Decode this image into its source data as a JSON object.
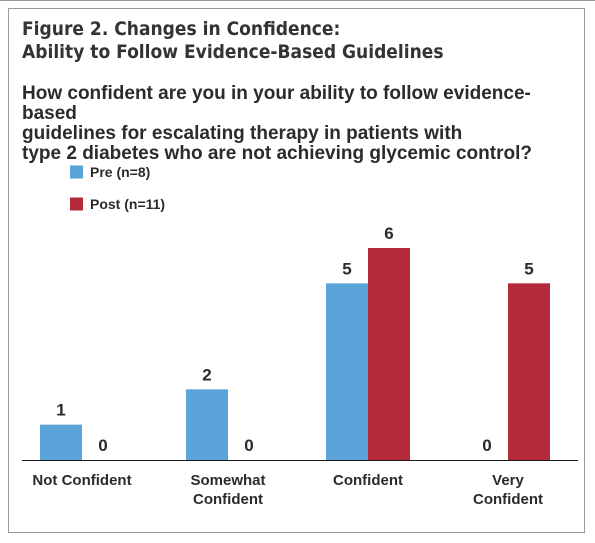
{
  "figure": {
    "title_line1": "Figure 2. Changes in Confidence:",
    "title_line2": "Ability to Follow Evidence-Based Guidelines",
    "question_line1": "How confident are you in your ability to follow evidence-based",
    "question_line2": "guidelines for escalating therapy in patients with",
    "question_line3": "type 2 diabetes who are not achieving glycemic control?"
  },
  "chart_data": {
    "type": "bar",
    "title": "Figure 2. Changes in Confidence: Ability to Follow Evidence-Based Guidelines",
    "subtitle": "How confident are you in your ability to follow evidence-based guidelines for escalating therapy in patients with type 2 diabetes who are not achieving glycemic control?",
    "categories": [
      [
        "Not Confident"
      ],
      [
        "Somewhat",
        "Confident"
      ],
      [
        "Confident"
      ],
      [
        "Very",
        "Confident"
      ]
    ],
    "series": [
      {
        "name": "Pre (n=8)",
        "color": "#5BA4DA",
        "values": [
          1,
          2,
          5,
          0
        ]
      },
      {
        "name": "Post (n=11)",
        "color": "#B52A3A",
        "values": [
          0,
          0,
          6,
          5
        ]
      }
    ],
    "ylim": [
      0,
      6
    ],
    "xlabel": "",
    "ylabel": "",
    "grid": false,
    "legend_position": "top-left",
    "data_labels": true
  }
}
